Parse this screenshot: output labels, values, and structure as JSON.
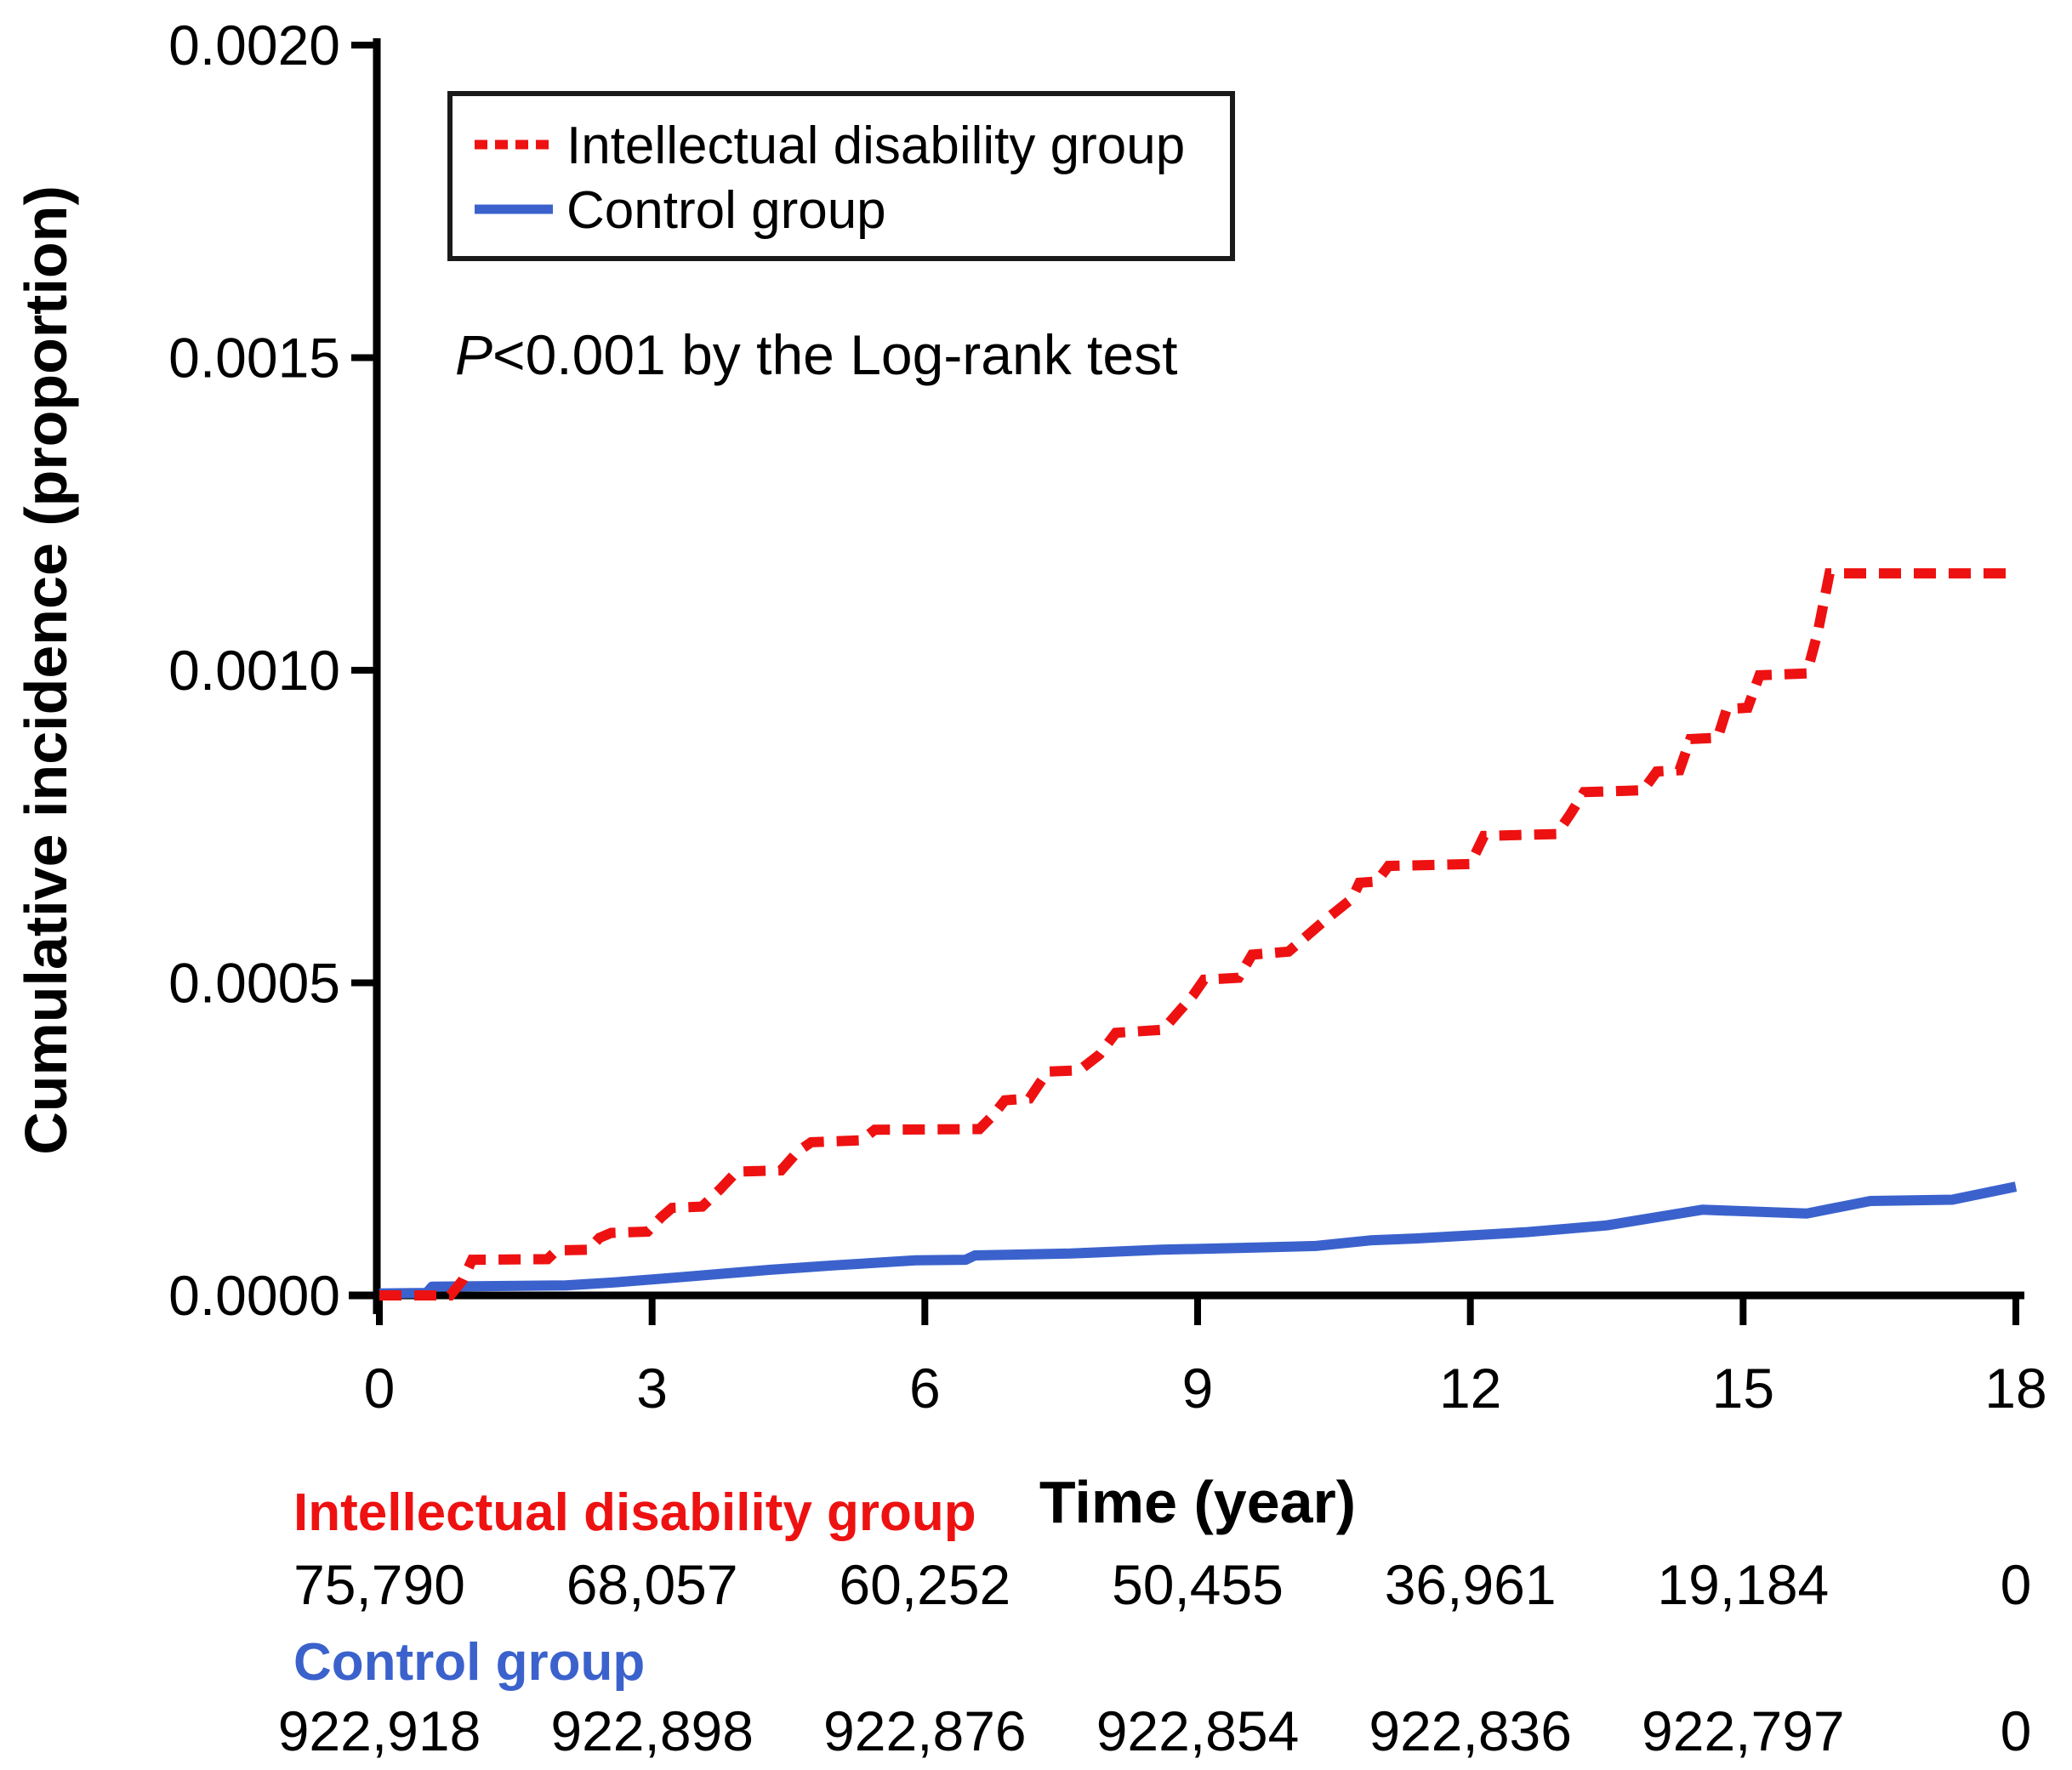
{
  "figure": {
    "background": "#ffffff",
    "axis_color": "#000000",
    "annotation": {
      "italic": "P",
      "rest": "<0.001 by the Log-rank test"
    }
  },
  "chart_data": {
    "type": "line",
    "subtype": "kaplan-meier-cumulative-incidence-step",
    "title": "",
    "xlabel": "Time (year)",
    "ylabel": "Cumulative incidence (proportion)",
    "xlim": [
      0,
      18
    ],
    "ylim": [
      0,
      0.002
    ],
    "xticks": [
      0,
      3,
      6,
      9,
      12,
      15,
      18
    ],
    "yticks": [
      0,
      0.0005,
      0.001,
      0.0015,
      0.002
    ],
    "ytick_labels": [
      "0.0000",
      "0.0005",
      "0.0010",
      "0.0015",
      "0.0020"
    ],
    "grid": false,
    "legend_position": "upper left",
    "annotation": "P<0.001 by the Log-rank test",
    "series": [
      {
        "name": "Intellectual disability group",
        "color": "#ee1111",
        "line_style": "dashed",
        "points": [
          [
            0,
            0
          ],
          [
            0.78,
            0
          ],
          [
            0.92,
            2.5e-05
          ],
          [
            1.02,
            5.7e-05
          ],
          [
            1.85,
            5.8e-05
          ],
          [
            1.95,
            7.2e-05
          ],
          [
            2.3,
            7.3e-05
          ],
          [
            2.42,
            9.2e-05
          ],
          [
            2.55,
            0.0001
          ],
          [
            2.95,
            0.000102
          ],
          [
            3.1,
            0.000125
          ],
          [
            3.22,
            0.00014
          ],
          [
            3.55,
            0.000142
          ],
          [
            3.75,
            0.00017
          ],
          [
            3.93,
            0.000198
          ],
          [
            4.42,
            0.0002
          ],
          [
            4.6,
            0.00023
          ],
          [
            4.75,
            0.000245
          ],
          [
            5.3,
            0.000248
          ],
          [
            5.45,
            0.000265
          ],
          [
            6.6,
            0.000266
          ],
          [
            6.75,
            0.000288
          ],
          [
            6.88,
            0.000312
          ],
          [
            7.15,
            0.000315
          ],
          [
            7.35,
            0.000358
          ],
          [
            7.7,
            0.00036
          ],
          [
            7.92,
            0.000385
          ],
          [
            8.1,
            0.00042
          ],
          [
            8.62,
            0.000425
          ],
          [
            8.8,
            0.000455
          ],
          [
            8.95,
            0.00048
          ],
          [
            9.07,
            0.000505
          ],
          [
            9.45,
            0.000508
          ],
          [
            9.6,
            0.000545
          ],
          [
            10.0,
            0.00055
          ],
          [
            10.4,
            0.0006
          ],
          [
            10.7,
            0.000635
          ],
          [
            10.78,
            0.00066
          ],
          [
            10.97,
            0.000662
          ],
          [
            11.1,
            0.000687
          ],
          [
            12.0,
            0.00069
          ],
          [
            12.15,
            0.000735
          ],
          [
            12.95,
            0.000738
          ],
          [
            13.1,
            0.00077
          ],
          [
            13.25,
            0.000805
          ],
          [
            13.9,
            0.000808
          ],
          [
            14.05,
            0.000838
          ],
          [
            14.3,
            0.00084
          ],
          [
            14.42,
            0.00089
          ],
          [
            14.72,
            0.000892
          ],
          [
            14.82,
            0.000938
          ],
          [
            15.05,
            0.00094
          ],
          [
            15.18,
            0.000992
          ],
          [
            15.7,
            0.000995
          ],
          [
            15.82,
            0.00106
          ],
          [
            15.95,
            0.001155
          ],
          [
            18,
            0.001155
          ]
        ]
      },
      {
        "name": "Control group",
        "color": "#3b62cc",
        "line_style": "solid",
        "points": [
          [
            0,
            3e-06
          ],
          [
            0.52,
            4e-06
          ],
          [
            0.58,
            1.4e-05
          ],
          [
            2.05,
            1.6e-05
          ],
          [
            2.6,
            2.1e-05
          ],
          [
            3.3,
            2.9e-05
          ],
          [
            4.3,
            4.1e-05
          ],
          [
            5.0,
            4.8e-05
          ],
          [
            5.9,
            5.6e-05
          ],
          [
            6.45,
            5.7e-05
          ],
          [
            6.55,
            6.4e-05
          ],
          [
            7.6,
            6.7e-05
          ],
          [
            8.6,
            7.3e-05
          ],
          [
            9.5,
            7.6e-05
          ],
          [
            10.3,
            7.9e-05
          ],
          [
            10.9,
            8.8e-05
          ],
          [
            11.4,
            9.1e-05
          ],
          [
            12.6,
            0.000101
          ],
          [
            13.5,
            0.000112
          ],
          [
            14.55,
            0.000137
          ],
          [
            15.7,
            0.000131
          ],
          [
            16.4,
            0.000151
          ],
          [
            17.3,
            0.000153
          ],
          [
            18,
            0.000174
          ]
        ]
      }
    ]
  },
  "risk_table": {
    "rows": [
      {
        "label": "Intellectual disability group",
        "color": "#ee1111",
        "values": [
          "75,790",
          "68,057",
          "60,252",
          "50,455",
          "36,961",
          "19,184",
          "0"
        ]
      },
      {
        "label": "Control group",
        "color": "#3b62cc",
        "values": [
          "922,918",
          "922,898",
          "922,876",
          "922,854",
          "922,836",
          "922,797",
          "0"
        ]
      }
    ]
  }
}
